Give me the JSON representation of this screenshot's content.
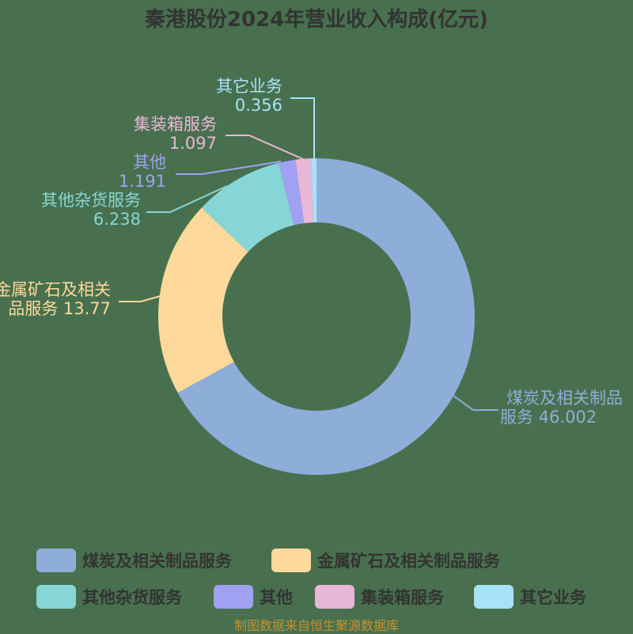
{
  "title": "秦港股份2024年营业收入构成(亿元)",
  "source": "制图数据来自恒生聚源数据库",
  "colors": {
    "background": "#48704e",
    "coal": "#8daed9",
    "metal": "#ffd99b",
    "cargo": "#87d6d7",
    "other": "#a1a1f4",
    "container": "#e8b7d8",
    "other_business": "#a6e3fa"
  },
  "labels": [
    {
      "line1": "煤炭及相关制品",
      "line2": "服务 46.002"
    },
    {
      "line1": "金属矿石及相关",
      "line2": "品服务 13.77"
    },
    {
      "line1": "其他杂货服务",
      "line2": "6.238"
    },
    {
      "line1": "其他",
      "line2": "1.191"
    },
    {
      "line1": "集装箱服务",
      "line2": "1.097"
    },
    {
      "line1": "其它业务",
      "line2": "0.356"
    }
  ],
  "legend": [
    {
      "label": "煤炭及相关制品服务"
    },
    {
      "label": "金属矿石及相关制品服务"
    },
    {
      "label": "其他杂货服务"
    },
    {
      "label": "其他"
    },
    {
      "label": "集装箱服务"
    },
    {
      "label": "其它业务"
    }
  ],
  "chart_data": {
    "type": "pie",
    "subtype": "donut",
    "title": "秦港股份2024年营业收入构成(亿元)",
    "categories": [
      "煤炭及相关制品服务",
      "金属矿石及相关制品服务",
      "其他杂货服务",
      "其他",
      "集装箱服务",
      "其它业务"
    ],
    "values": [
      46.002,
      13.77,
      6.238,
      1.191,
      1.097,
      0.356
    ],
    "colors": [
      "#8daed9",
      "#ffd99b",
      "#87d6d7",
      "#a1a1f4",
      "#e8b7d8",
      "#a6e3fa"
    ],
    "unit": "亿元",
    "start_angle": "12 o'clock, clockwise",
    "legend_position": "bottom",
    "annotation": "制图数据来自恒生聚源数据库"
  }
}
